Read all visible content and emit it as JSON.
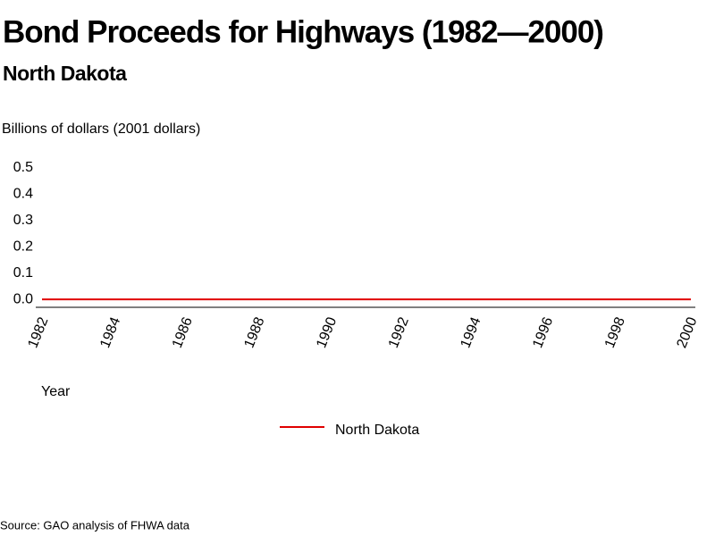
{
  "chart_data": {
    "type": "line",
    "title": "Bond Proceeds for Highways (1982—2000)",
    "subtitle": "North Dakota",
    "y_label": "Billions of dollars (2001 dollars)",
    "x_label": "Year",
    "source": "Source: GAO analysis of FHWA data",
    "x": [
      1982,
      1983,
      1984,
      1985,
      1986,
      1987,
      1988,
      1989,
      1990,
      1991,
      1992,
      1993,
      1994,
      1995,
      1996,
      1997,
      1998,
      1999,
      2000
    ],
    "series": [
      {
        "name": "North Dakota",
        "color": "#e00000",
        "values": [
          0,
          0,
          0,
          0,
          0,
          0,
          0,
          0,
          0,
          0,
          0,
          0,
          0,
          0,
          0,
          0,
          0,
          0,
          0
        ]
      }
    ],
    "xlim": [
      1982,
      2000
    ],
    "xticks": [
      1982,
      1984,
      1986,
      1988,
      1990,
      1992,
      1994,
      1996,
      1998,
      2000
    ],
    "ylim": [
      -0.03,
      0.5
    ],
    "yticks": [
      {
        "value": 0,
        "label": "0.0"
      },
      0.1,
      0.2,
      0.3,
      0.4,
      0.5
    ],
    "legend": "bottom"
  }
}
